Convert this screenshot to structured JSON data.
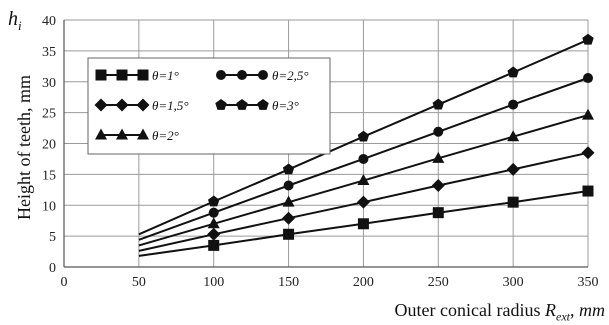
{
  "chart_data": {
    "type": "line",
    "x": [
      50,
      100,
      150,
      200,
      250,
      300,
      350
    ],
    "xlim": [
      0,
      350
    ],
    "ylim": [
      0,
      40
    ],
    "xticks": [
      "0",
      "50",
      "100",
      "150",
      "200",
      "250",
      "300",
      "350"
    ],
    "yticks": [
      "0",
      "5",
      "10",
      "15",
      "20",
      "25",
      "30",
      "35",
      "40"
    ],
    "ylabel": "Height of teeth, mm",
    "ylabel_corner_main": "h",
    "ylabel_corner_sub": "i",
    "xlabel_prefix": "Outer conical radius ",
    "xlabel_symbol": "R",
    "xlabel_sub": "ext",
    "xlabel_unit": ", mm",
    "grid": true,
    "legend_position": "top-left",
    "series": [
      {
        "name": "θ=1°",
        "marker": "square",
        "values": [
          1.8,
          3.5,
          5.3,
          7.0,
          8.8,
          10.5,
          12.3
        ]
      },
      {
        "name": "θ=1,5°",
        "marker": "diamond",
        "values": [
          2.6,
          5.3,
          7.9,
          10.5,
          13.2,
          15.8,
          18.5
        ]
      },
      {
        "name": "θ=2°",
        "marker": "triangle",
        "values": [
          3.5,
          7.0,
          10.5,
          14.0,
          17.6,
          21.1,
          24.6
        ]
      },
      {
        "name": "θ=2,5°",
        "marker": "circle",
        "values": [
          4.4,
          8.8,
          13.2,
          17.5,
          21.9,
          26.3,
          30.6
        ]
      },
      {
        "name": "θ=3°",
        "marker": "pentagon",
        "values": [
          5.3,
          10.6,
          15.8,
          21.1,
          26.3,
          31.5,
          36.8
        ]
      }
    ]
  }
}
